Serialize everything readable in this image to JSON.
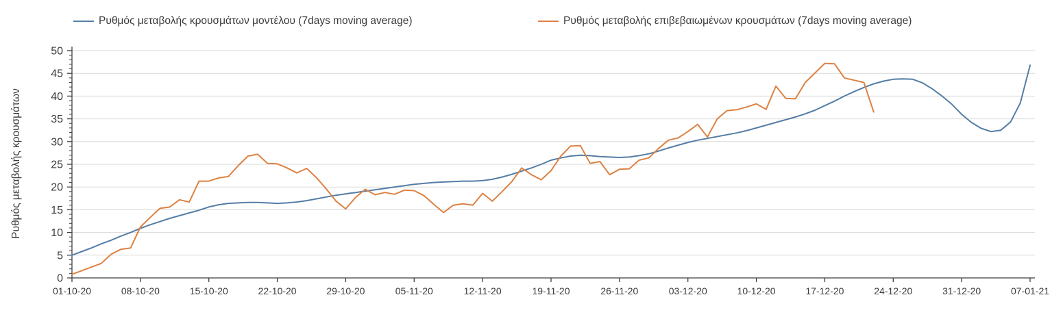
{
  "legend": [
    {
      "label": "Ρυθμός μεταβολής κρουσμάτων μοντέλου (7days moving average)",
      "color": "#547da5"
    },
    {
      "label": "Ρυθμός μεταβολής επιβεβαιωμένων κρουσμάτων (7days moving average)",
      "color": "#dd8142"
    }
  ],
  "chart_data": {
    "type": "line",
    "title": "",
    "xlabel": "",
    "ylabel": "Ρυθμός μεταβολής κρουσμάτων",
    "ylim": [
      0,
      50
    ],
    "y_ticks": [
      0,
      5,
      10,
      15,
      20,
      25,
      30,
      35,
      40,
      45,
      50
    ],
    "grid": "horizontal",
    "legend_position": "top",
    "x_unit": "day",
    "x_tick_labels": [
      "01-10-20",
      "08-10-20",
      "15-10-20",
      "22-10-20",
      "29-10-20",
      "05-11-20",
      "12-11-20",
      "19-11-20",
      "26-11-20",
      "03-12-20",
      "10-12-20",
      "17-12-20",
      "24-12-20",
      "31-12-20",
      "07-01-21"
    ],
    "x_tick_days": [
      0,
      7,
      14,
      21,
      28,
      35,
      42,
      49,
      56,
      63,
      70,
      77,
      84,
      91,
      98
    ],
    "series": [
      {
        "name": "Ρυθμός μεταβολής κρουσμάτων μοντέλου (7days moving average)",
        "color": "#547da5",
        "start_day": 0,
        "start_date": "01-10-20",
        "end_date": "07-01-21",
        "values": [
          5.0,
          5.8,
          6.6,
          7.5,
          8.3,
          9.2,
          10.0,
          10.9,
          11.7,
          12.4,
          13.1,
          13.7,
          14.3,
          14.9,
          15.6,
          16.1,
          16.4,
          16.5,
          16.6,
          16.6,
          16.5,
          16.4,
          16.5,
          16.7,
          17.0,
          17.4,
          17.8,
          18.2,
          18.5,
          18.8,
          19.1,
          19.4,
          19.7,
          20.0,
          20.3,
          20.6,
          20.8,
          21.0,
          21.1,
          21.2,
          21.3,
          21.3,
          21.4,
          21.7,
          22.2,
          22.8,
          23.5,
          24.2,
          25.0,
          25.9,
          26.4,
          26.8,
          27.0,
          26.9,
          26.7,
          26.6,
          26.5,
          26.6,
          26.9,
          27.3,
          27.9,
          28.6,
          29.2,
          29.8,
          30.3,
          30.7,
          31.1,
          31.5,
          31.9,
          32.4,
          33.0,
          33.6,
          34.2,
          34.8,
          35.4,
          36.1,
          36.9,
          37.9,
          38.9,
          40.0,
          41.0,
          41.9,
          42.7,
          43.3,
          43.7,
          43.8,
          43.7,
          42.9,
          41.6,
          40.0,
          38.2,
          36.0,
          34.2,
          32.9,
          32.2,
          32.5,
          34.3,
          38.5,
          46.8
        ]
      },
      {
        "name": "Ρυθμός μεταβολής επιβεβαιωμένων κρουσμάτων (7days moving average)",
        "color": "#dd8142",
        "start_day": 0,
        "start_date": "01-10-20",
        "end_date": "22-12-20",
        "values": [
          0.8,
          1.6,
          2.4,
          3.2,
          5.2,
          6.3,
          6.6,
          11.2,
          13.3,
          15.3,
          15.6,
          17.2,
          16.7,
          21.3,
          21.3,
          22.0,
          22.3,
          24.7,
          26.8,
          27.2,
          25.2,
          25.1,
          24.2,
          23.1,
          24.1,
          22.1,
          19.6,
          16.9,
          15.2,
          17.7,
          19.5,
          18.3,
          18.8,
          18.4,
          19.3,
          19.2,
          18.1,
          16.2,
          14.4,
          16.0,
          16.3,
          16.0,
          18.6,
          16.9,
          19.0,
          21.2,
          24.2,
          22.7,
          21.6,
          23.6,
          26.8,
          29.0,
          29.1,
          25.2,
          25.6,
          22.7,
          23.9,
          24.0,
          25.9,
          26.4,
          28.5,
          30.3,
          30.8,
          32.2,
          33.8,
          31.0,
          35.0,
          36.8,
          37.0,
          37.6,
          38.3,
          37.1,
          42.2,
          39.5,
          39.4,
          43.0,
          45.1,
          47.2,
          47.1,
          44.0,
          43.5,
          43.0,
          36.5
        ]
      }
    ],
    "colors": {
      "grid": "#d9d9d9",
      "axis": "#3f3f3f",
      "tick_text": "#3a3a3a"
    }
  }
}
